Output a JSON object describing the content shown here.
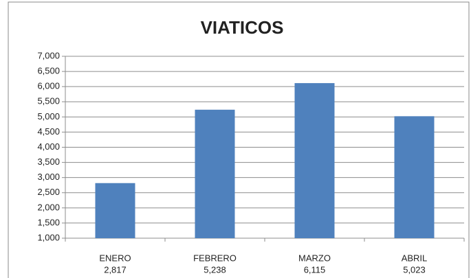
{
  "chart_data": {
    "type": "bar",
    "title": "VIATICOS",
    "categories": [
      "ENERO",
      "FEBRERO",
      "MARZO",
      "ABRIL"
    ],
    "values": [
      2817,
      5238,
      6115,
      5023
    ],
    "value_labels": [
      "2,817",
      "5,238",
      "6,115",
      "5,023"
    ],
    "color": "#4f81bd",
    "ylim": [
      1000,
      7000
    ],
    "yticks": [
      {
        "value": 1000,
        "label": "1,000"
      },
      {
        "value": 1500,
        "label": "1,500"
      },
      {
        "value": 2000,
        "label": "2,000"
      },
      {
        "value": 2500,
        "label": "2,500"
      },
      {
        "value": 3000,
        "label": "3,000"
      },
      {
        "value": 3500,
        "label": "3,500"
      },
      {
        "value": 4000,
        "label": "4,000"
      },
      {
        "value": 4500,
        "label": "4,500"
      },
      {
        "value": 5000,
        "label": "5,000"
      },
      {
        "value": 5500,
        "label": "5,500"
      },
      {
        "value": 6000,
        "label": "6,000"
      },
      {
        "value": 6500,
        "label": "6,500"
      },
      {
        "value": 7000,
        "label": "7,000"
      }
    ],
    "grid": true
  }
}
